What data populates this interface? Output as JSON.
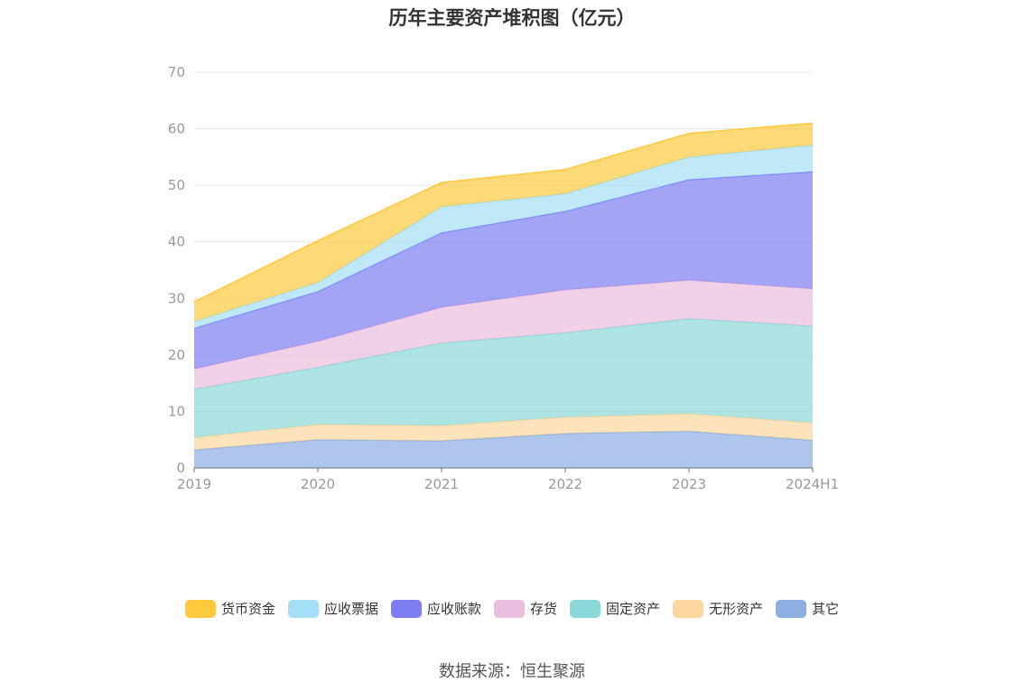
{
  "title": "历年主要资产堆积图（亿元）",
  "source": "数据来源：恒生聚源",
  "chart_data": {
    "type": "area",
    "stacked": true,
    "title": "历年主要资产堆积图（亿元）",
    "xlabel": "",
    "ylabel": "",
    "ylim": [
      0,
      70
    ],
    "yticks": [
      0,
      10,
      20,
      30,
      40,
      50,
      60,
      70
    ],
    "categories": [
      "2019",
      "2020",
      "2021",
      "2022",
      "2023",
      "2024H1"
    ],
    "grid": true,
    "legend_position": "bottom",
    "series": [
      {
        "name": "其它",
        "color": "#8caee0",
        "values": [
          3.2,
          5.0,
          4.8,
          6.1,
          6.5,
          4.9
        ]
      },
      {
        "name": "无形资产",
        "color": "#fcd79f",
        "values": [
          2.2,
          2.7,
          2.7,
          2.9,
          3.1,
          3.1
        ]
      },
      {
        "name": "固定资产",
        "color": "#8cd9d9",
        "values": [
          8.5,
          10.1,
          14.6,
          14.9,
          16.8,
          17.1
        ]
      },
      {
        "name": "存货",
        "color": "#e9bede",
        "values": [
          3.6,
          4.6,
          6.3,
          7.6,
          6.8,
          6.6
        ]
      },
      {
        "name": "应收账款",
        "color": "#7c7ef2",
        "values": [
          7.2,
          8.8,
          13.2,
          13.9,
          17.8,
          20.7
        ]
      },
      {
        "name": "应收票据",
        "color": "#a4def7",
        "values": [
          1.2,
          1.6,
          4.6,
          3.1,
          4.0,
          4.7
        ]
      },
      {
        "name": "货币资金",
        "color": "#fdc93f",
        "values": [
          3.5,
          7.4,
          4.3,
          4.3,
          4.2,
          3.9
        ]
      }
    ]
  },
  "legend": [
    {
      "label": "货币资金",
      "color": "#fdc93f"
    },
    {
      "label": "应收票据",
      "color": "#a4def7"
    },
    {
      "label": "应收账款",
      "color": "#7c7ef2"
    },
    {
      "label": "存货",
      "color": "#e9bede"
    },
    {
      "label": "固定资产",
      "color": "#8cd9d9"
    },
    {
      "label": "无形资产",
      "color": "#fcd79f"
    },
    {
      "label": "其它",
      "color": "#8caee0"
    }
  ]
}
